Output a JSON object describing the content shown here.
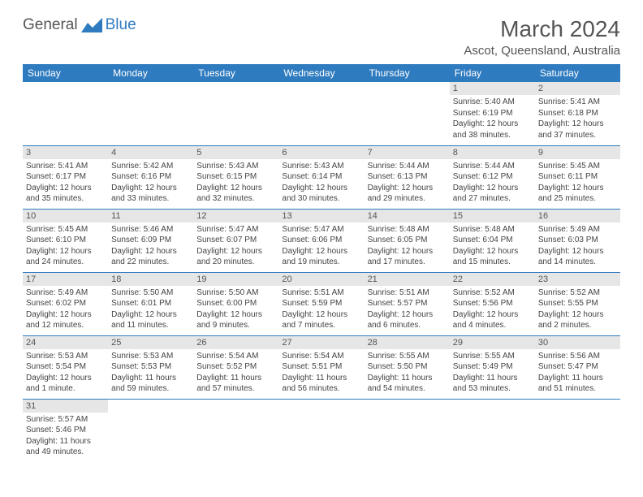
{
  "logo": {
    "text1": "General",
    "text2": "Blue"
  },
  "title": "March 2024",
  "location": "Ascot, Queensland, Australia",
  "colors": {
    "header_bg": "#2f7bbf",
    "header_text": "#ffffff",
    "daynum_bg": "#e6e6e6",
    "border": "#2f7bbf",
    "body_text": "#444444",
    "title_text": "#555555"
  },
  "weekdays": [
    "Sunday",
    "Monday",
    "Tuesday",
    "Wednesday",
    "Thursday",
    "Friday",
    "Saturday"
  ],
  "first_weekday_index": 5,
  "days": [
    {
      "n": 1,
      "sunrise": "5:40 AM",
      "sunset": "6:19 PM",
      "daylight": "12 hours and 38 minutes."
    },
    {
      "n": 2,
      "sunrise": "5:41 AM",
      "sunset": "6:18 PM",
      "daylight": "12 hours and 37 minutes."
    },
    {
      "n": 3,
      "sunrise": "5:41 AM",
      "sunset": "6:17 PM",
      "daylight": "12 hours and 35 minutes."
    },
    {
      "n": 4,
      "sunrise": "5:42 AM",
      "sunset": "6:16 PM",
      "daylight": "12 hours and 33 minutes."
    },
    {
      "n": 5,
      "sunrise": "5:43 AM",
      "sunset": "6:15 PM",
      "daylight": "12 hours and 32 minutes."
    },
    {
      "n": 6,
      "sunrise": "5:43 AM",
      "sunset": "6:14 PM",
      "daylight": "12 hours and 30 minutes."
    },
    {
      "n": 7,
      "sunrise": "5:44 AM",
      "sunset": "6:13 PM",
      "daylight": "12 hours and 29 minutes."
    },
    {
      "n": 8,
      "sunrise": "5:44 AM",
      "sunset": "6:12 PM",
      "daylight": "12 hours and 27 minutes."
    },
    {
      "n": 9,
      "sunrise": "5:45 AM",
      "sunset": "6:11 PM",
      "daylight": "12 hours and 25 minutes."
    },
    {
      "n": 10,
      "sunrise": "5:45 AM",
      "sunset": "6:10 PM",
      "daylight": "12 hours and 24 minutes."
    },
    {
      "n": 11,
      "sunrise": "5:46 AM",
      "sunset": "6:09 PM",
      "daylight": "12 hours and 22 minutes."
    },
    {
      "n": 12,
      "sunrise": "5:47 AM",
      "sunset": "6:07 PM",
      "daylight": "12 hours and 20 minutes."
    },
    {
      "n": 13,
      "sunrise": "5:47 AM",
      "sunset": "6:06 PM",
      "daylight": "12 hours and 19 minutes."
    },
    {
      "n": 14,
      "sunrise": "5:48 AM",
      "sunset": "6:05 PM",
      "daylight": "12 hours and 17 minutes."
    },
    {
      "n": 15,
      "sunrise": "5:48 AM",
      "sunset": "6:04 PM",
      "daylight": "12 hours and 15 minutes."
    },
    {
      "n": 16,
      "sunrise": "5:49 AM",
      "sunset": "6:03 PM",
      "daylight": "12 hours and 14 minutes."
    },
    {
      "n": 17,
      "sunrise": "5:49 AM",
      "sunset": "6:02 PM",
      "daylight": "12 hours and 12 minutes."
    },
    {
      "n": 18,
      "sunrise": "5:50 AM",
      "sunset": "6:01 PM",
      "daylight": "12 hours and 11 minutes."
    },
    {
      "n": 19,
      "sunrise": "5:50 AM",
      "sunset": "6:00 PM",
      "daylight": "12 hours and 9 minutes."
    },
    {
      "n": 20,
      "sunrise": "5:51 AM",
      "sunset": "5:59 PM",
      "daylight": "12 hours and 7 minutes."
    },
    {
      "n": 21,
      "sunrise": "5:51 AM",
      "sunset": "5:57 PM",
      "daylight": "12 hours and 6 minutes."
    },
    {
      "n": 22,
      "sunrise": "5:52 AM",
      "sunset": "5:56 PM",
      "daylight": "12 hours and 4 minutes."
    },
    {
      "n": 23,
      "sunrise": "5:52 AM",
      "sunset": "5:55 PM",
      "daylight": "12 hours and 2 minutes."
    },
    {
      "n": 24,
      "sunrise": "5:53 AM",
      "sunset": "5:54 PM",
      "daylight": "12 hours and 1 minute."
    },
    {
      "n": 25,
      "sunrise": "5:53 AM",
      "sunset": "5:53 PM",
      "daylight": "11 hours and 59 minutes."
    },
    {
      "n": 26,
      "sunrise": "5:54 AM",
      "sunset": "5:52 PM",
      "daylight": "11 hours and 57 minutes."
    },
    {
      "n": 27,
      "sunrise": "5:54 AM",
      "sunset": "5:51 PM",
      "daylight": "11 hours and 56 minutes."
    },
    {
      "n": 28,
      "sunrise": "5:55 AM",
      "sunset": "5:50 PM",
      "daylight": "11 hours and 54 minutes."
    },
    {
      "n": 29,
      "sunrise": "5:55 AM",
      "sunset": "5:49 PM",
      "daylight": "11 hours and 53 minutes."
    },
    {
      "n": 30,
      "sunrise": "5:56 AM",
      "sunset": "5:47 PM",
      "daylight": "11 hours and 51 minutes."
    },
    {
      "n": 31,
      "sunrise": "5:57 AM",
      "sunset": "5:46 PM",
      "daylight": "11 hours and 49 minutes."
    }
  ],
  "labels": {
    "sunrise": "Sunrise:",
    "sunset": "Sunset:",
    "daylight": "Daylight:"
  }
}
